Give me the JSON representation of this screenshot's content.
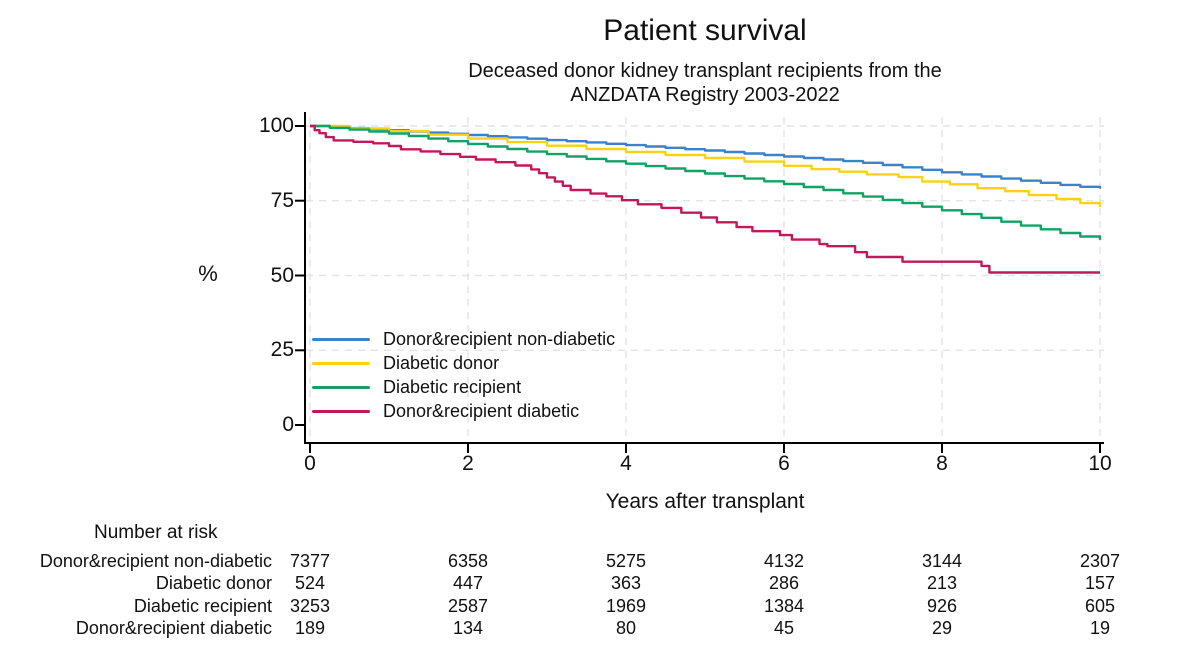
{
  "chart_data": {
    "type": "line",
    "subtype": "kaplan-meier-survival",
    "title": "Patient survival",
    "subtitle_lines": [
      "Deceased donor kidney transplant recipients from the",
      "ANZDATA Registry 2003-2022"
    ],
    "xlabel": "Years after transplant",
    "ylabel": "%",
    "xlim": [
      0,
      10
    ],
    "ylim": [
      0,
      100
    ],
    "xticks": [
      0,
      2,
      4,
      6,
      8,
      10
    ],
    "yticks": [
      0,
      25,
      50,
      75,
      100
    ],
    "grid": "dashed-light-gray",
    "legend_position": "inside-lower-left",
    "axis_color": "#000000",
    "grid_color": "#e4e4e4",
    "series": [
      {
        "name": "Donor&recipient non-diabetic",
        "color": "#3c82cb",
        "render": "fine-step",
        "points": [
          [
            0,
            100
          ],
          [
            0.5,
            99.3
          ],
          [
            1,
            98.6
          ],
          [
            1.5,
            97.8
          ],
          [
            2,
            97.0
          ],
          [
            2.5,
            96.2
          ],
          [
            3,
            95.3
          ],
          [
            3.5,
            94.5
          ],
          [
            4,
            93.6
          ],
          [
            4.5,
            92.7
          ],
          [
            5,
            91.8
          ],
          [
            5.5,
            90.8
          ],
          [
            6,
            89.8
          ],
          [
            6.5,
            88.8
          ],
          [
            7,
            87.7
          ],
          [
            7.5,
            86.2
          ],
          [
            8,
            84.5
          ],
          [
            8.5,
            83.1
          ],
          [
            9,
            81.7
          ],
          [
            9.5,
            80.3
          ],
          [
            10,
            79.0
          ]
        ]
      },
      {
        "name": "Diabetic donor",
        "color": "#fbd116",
        "render": "step",
        "points": [
          [
            0,
            100
          ],
          [
            0.5,
            99.2
          ],
          [
            1,
            98.3
          ],
          [
            1.5,
            97.1
          ],
          [
            2,
            95.8
          ],
          [
            2.5,
            94.6
          ],
          [
            3,
            93.4
          ],
          [
            3.5,
            92.3
          ],
          [
            4,
            91.3
          ],
          [
            4.5,
            90.3
          ],
          [
            5,
            89.3
          ],
          [
            5.5,
            88.1
          ],
          [
            6,
            86.7
          ],
          [
            6.35,
            85.6
          ],
          [
            6.7,
            84.7
          ],
          [
            7.05,
            83.8
          ],
          [
            7.45,
            82.9
          ],
          [
            7.75,
            81.4
          ],
          [
            8.1,
            80.5
          ],
          [
            8.45,
            79.2
          ],
          [
            8.8,
            78.2
          ],
          [
            9.1,
            76.9
          ],
          [
            9.45,
            75.6
          ],
          [
            9.75,
            74.2
          ],
          [
            10,
            72.9
          ]
        ]
      },
      {
        "name": "Diabetic recipient",
        "color": "#12a266",
        "render": "fine-step",
        "points": [
          [
            0,
            100
          ],
          [
            0.5,
            98.8
          ],
          [
            1,
            97.5
          ],
          [
            1.5,
            95.8
          ],
          [
            2,
            94.0
          ],
          [
            2.5,
            92.3
          ],
          [
            3,
            90.6
          ],
          [
            3.5,
            89.0
          ],
          [
            4,
            87.4
          ],
          [
            4.5,
            85.8
          ],
          [
            5,
            84.1
          ],
          [
            5.5,
            82.4
          ],
          [
            6,
            80.6
          ],
          [
            6.5,
            78.6
          ],
          [
            7,
            76.4
          ],
          [
            7.5,
            74.2
          ],
          [
            8,
            71.8
          ],
          [
            8.5,
            69.3
          ],
          [
            9,
            66.7
          ],
          [
            9.5,
            64.2
          ],
          [
            10,
            61.9
          ]
        ]
      },
      {
        "name": "Donor&recipient diabetic",
        "color": "#c2185b",
        "render": "step",
        "points": [
          [
            0,
            100
          ],
          [
            0.06,
            98.6
          ],
          [
            0.12,
            97.6
          ],
          [
            0.2,
            96.3
          ],
          [
            0.3,
            95.2
          ],
          [
            0.55,
            94.7
          ],
          [
            0.8,
            94.2
          ],
          [
            1.0,
            93.3
          ],
          [
            1.15,
            92.2
          ],
          [
            1.4,
            91.5
          ],
          [
            1.65,
            90.6
          ],
          [
            1.9,
            89.7
          ],
          [
            2.1,
            88.8
          ],
          [
            2.35,
            87.9
          ],
          [
            2.6,
            86.8
          ],
          [
            2.8,
            85.5
          ],
          [
            2.9,
            84.2
          ],
          [
            3.0,
            82.8
          ],
          [
            3.1,
            81.4
          ],
          [
            3.2,
            80.0
          ],
          [
            3.3,
            78.6
          ],
          [
            3.55,
            77.4
          ],
          [
            3.75,
            76.5
          ],
          [
            3.95,
            75.2
          ],
          [
            4.15,
            73.8
          ],
          [
            4.45,
            72.6
          ],
          [
            4.7,
            71.0
          ],
          [
            4.95,
            69.4
          ],
          [
            5.15,
            67.8
          ],
          [
            5.4,
            66.2
          ],
          [
            5.6,
            64.8
          ],
          [
            5.95,
            63.5
          ],
          [
            6.1,
            62.0
          ],
          [
            6.45,
            60.5
          ],
          [
            6.55,
            59.8
          ],
          [
            6.9,
            57.8
          ],
          [
            7.05,
            56.2
          ],
          [
            7.5,
            54.6
          ],
          [
            8.5,
            53.2
          ],
          [
            8.6,
            51.0
          ],
          [
            10,
            51.0
          ]
        ]
      }
    ]
  },
  "risk_table": {
    "heading": "Number at risk",
    "times": [
      0,
      2,
      4,
      6,
      8,
      10
    ],
    "rows": [
      {
        "label": "Donor&recipient non-diabetic",
        "values": [
          7377,
          6358,
          5275,
          4132,
          3144,
          2307
        ]
      },
      {
        "label": "Diabetic donor",
        "values": [
          524,
          447,
          363,
          286,
          213,
          157
        ]
      },
      {
        "label": "Diabetic recipient",
        "values": [
          3253,
          2587,
          1969,
          1384,
          926,
          605
        ]
      },
      {
        "label": "Donor&recipient diabetic",
        "values": [
          189,
          134,
          80,
          45,
          29,
          19
        ]
      }
    ]
  }
}
